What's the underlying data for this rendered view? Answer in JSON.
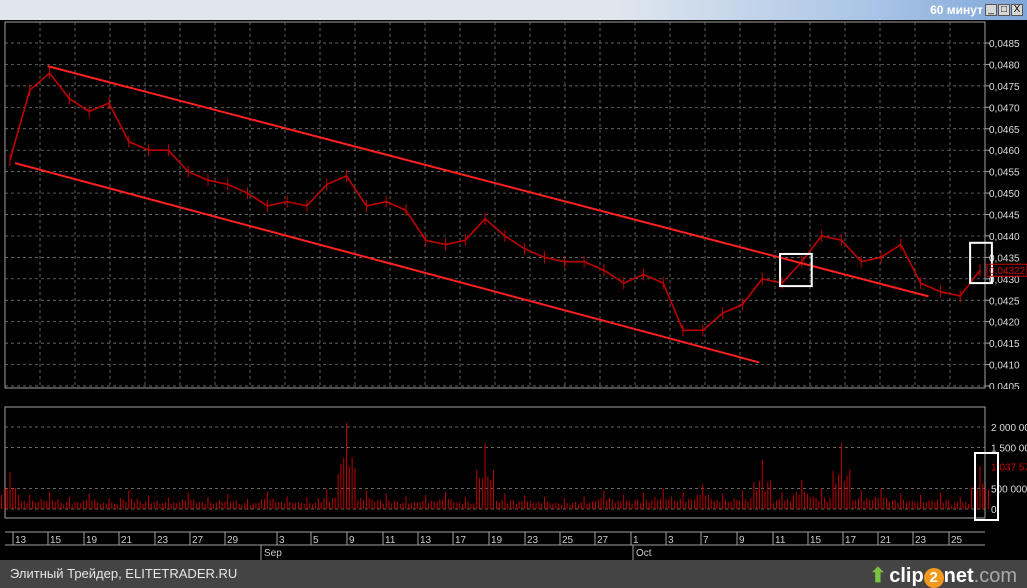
{
  "window": {
    "title": "60 минут",
    "buttons": [
      "_",
      "□",
      "X"
    ]
  },
  "footer": {
    "text": "Элитный Трейдер, ELITETRADER.RU",
    "logo": "clip2net.com"
  },
  "colors": {
    "background": "#000000",
    "price": "#c00000",
    "channel": "#ff2020",
    "grid": "#a0a0a0",
    "highlight": "#ffffff"
  },
  "chart_data": [
    {
      "type": "line",
      "title": "",
      "ylim": [
        0.0405,
        0.0485
      ],
      "y_ticks": [
        "0,0485",
        "0,0480",
        "0,0475",
        "0,0470",
        "0,0465",
        "0,0460",
        "0,0455",
        "0,0450",
        "0,0445",
        "0,0440",
        "0,0435",
        "0,0430",
        "0,0425",
        "0,0420",
        "0,0415",
        "0,0410",
        "0,0405"
      ],
      "grid": true,
      "values": [
        0.04577,
        0.0474,
        0.0478,
        0.0472,
        0.0469,
        0.0471,
        0.0462,
        0.046,
        0.046,
        0.0455,
        0.0453,
        0.0452,
        0.045,
        0.0447,
        0.0448,
        0.0447,
        0.0452,
        0.0454,
        0.0447,
        0.0448,
        0.0446,
        0.0439,
        0.0438,
        0.0439,
        0.0444,
        0.044,
        0.0437,
        0.0435,
        0.0434,
        0.0434,
        0.0432,
        0.0429,
        0.0431,
        0.0429,
        0.0418,
        0.0418,
        0.0422,
        0.0424,
        0.043,
        0.0429,
        0.0434,
        0.044,
        0.0439,
        0.0434,
        0.0435,
        0.0438,
        0.0429,
        0.0427,
        0.0426,
        0.0432
      ],
      "last_value_label": "0,04322",
      "channel_lines": [
        {
          "from": [
            1.9,
            0.04796
          ],
          "to": [
            46.4,
            0.04259
          ]
        },
        {
          "from": [
            0.25,
            0.0457
          ],
          "to": [
            37.85,
            0.04105
          ]
        }
      ],
      "highlight_boxes": [
        {
          "from": [
            38.9,
            0.04358
          ],
          "to": [
            40.5,
            0.04283
          ]
        },
        {
          "from": [
            48.5,
            0.04384
          ],
          "to": [
            49.6,
            0.0429
          ]
        }
      ]
    },
    {
      "type": "bar",
      "title": "",
      "ylim": [
        0,
        2300000
      ],
      "y_ticks": [
        {
          "value": 2000000,
          "label": "2 000 00"
        },
        {
          "value": 1500000,
          "label": "1 500 00"
        },
        {
          "value": 500000,
          "label": "500 000"
        },
        {
          "value": 0,
          "label": "0"
        }
      ],
      "grid": true,
      "values": [
        900000,
        350000,
        420000,
        300000,
        380000,
        260000,
        450000,
        330000,
        280000,
        400000,
        300000,
        360000,
        250000,
        420000,
        300000,
        280000,
        480000,
        2100000,
        450000,
        380000,
        300000,
        340000,
        420000,
        290000,
        1600000,
        380000,
        330000,
        300000,
        260000,
        310000,
        450000,
        350000,
        400000,
        500000,
        420000,
        600000,
        380000,
        450000,
        1200000,
        400000,
        700000,
        500000,
        1600000,
        450000,
        500000,
        380000,
        350000,
        400000,
        300000,
        1037570
      ],
      "last_value_label": "1 037 57"
    }
  ],
  "x_axis": {
    "day_ticks": [
      "13",
      "15",
      "19",
      "21",
      "23",
      "27",
      "29",
      "3",
      "5",
      "9",
      "11",
      "13",
      "17",
      "19",
      "23",
      "25",
      "27",
      "1",
      "3",
      "7",
      "9",
      "11",
      "15",
      "17",
      "21",
      "23",
      "25"
    ],
    "months": [
      "Sep",
      "Oct"
    ]
  }
}
